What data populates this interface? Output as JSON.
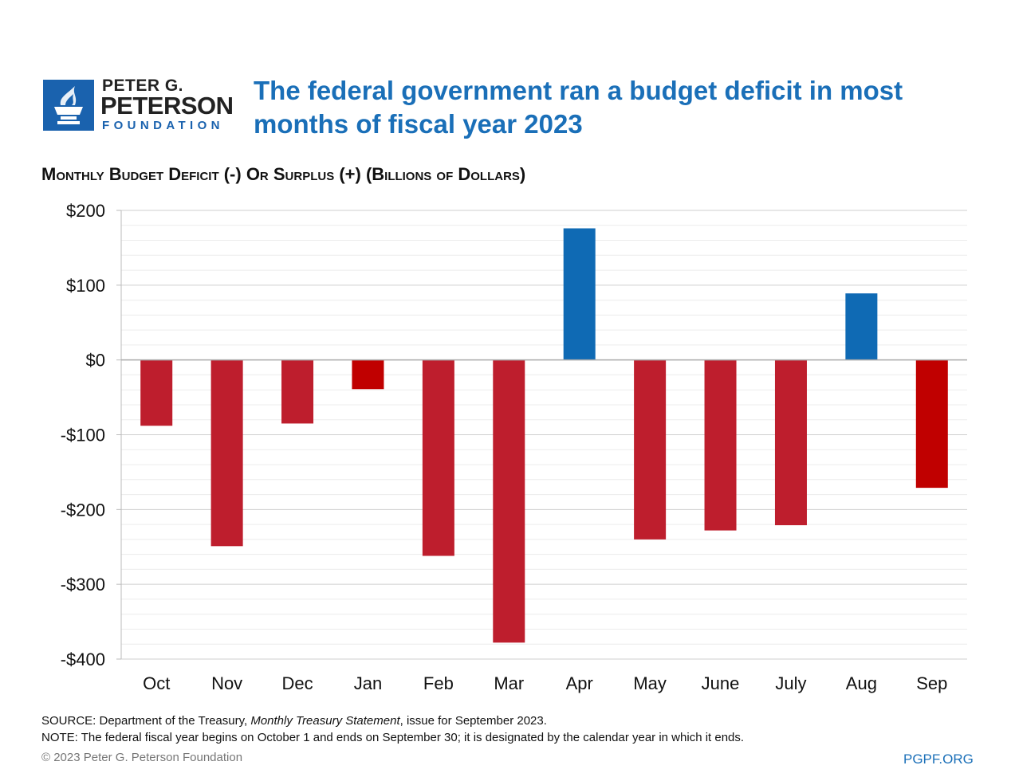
{
  "logo": {
    "line1": "PETER G.",
    "line2": "PETERSON",
    "line3": "FOUNDATION"
  },
  "title": "The federal government ran a budget deficit in most months of fiscal year 2023",
  "chart_data": {
    "type": "bar",
    "title": "The federal government ran a budget deficit in most months of fiscal year 2023",
    "ylabel": "Monthly Budget Deficit (-) Or Surplus (+) (Billions of Dollars)",
    "xlabel": "",
    "categories": [
      "Oct",
      "Nov",
      "Dec",
      "Jan",
      "Feb",
      "Mar",
      "Apr",
      "May",
      "June",
      "July",
      "Aug",
      "Sep"
    ],
    "values": [
      -88,
      -249,
      -85,
      -39,
      -262,
      -378,
      176,
      -240,
      -228,
      -221,
      89,
      -171
    ],
    "colors": [
      "#be1e2d",
      "#be1e2d",
      "#be1e2d",
      "#c00000",
      "#be1e2d",
      "#be1e2d",
      "#0f6ab4",
      "#be1e2d",
      "#be1e2d",
      "#be1e2d",
      "#0f6ab4",
      "#c00000"
    ],
    "ylim": [
      -400,
      200
    ],
    "yticks": [
      200,
      100,
      0,
      -100,
      -200,
      -300,
      -400
    ],
    "ytick_labels": [
      "$200",
      "$100",
      "$0",
      "-$100",
      "-$200",
      "-$300",
      "-$400"
    ],
    "grid": true
  },
  "footer": {
    "source_prefix": "SOURCE: Department of the Treasury, ",
    "source_italic": "Monthly Treasury Statement",
    "source_suffix": ", issue for September 2023.",
    "note": "NOTE: The federal fiscal year begins on October 1 and ends on September 30; it is designated by the calendar year in which it ends.",
    "copyright": "© 2023 Peter G. Peterson Foundation",
    "url": "PGPF.ORG"
  }
}
